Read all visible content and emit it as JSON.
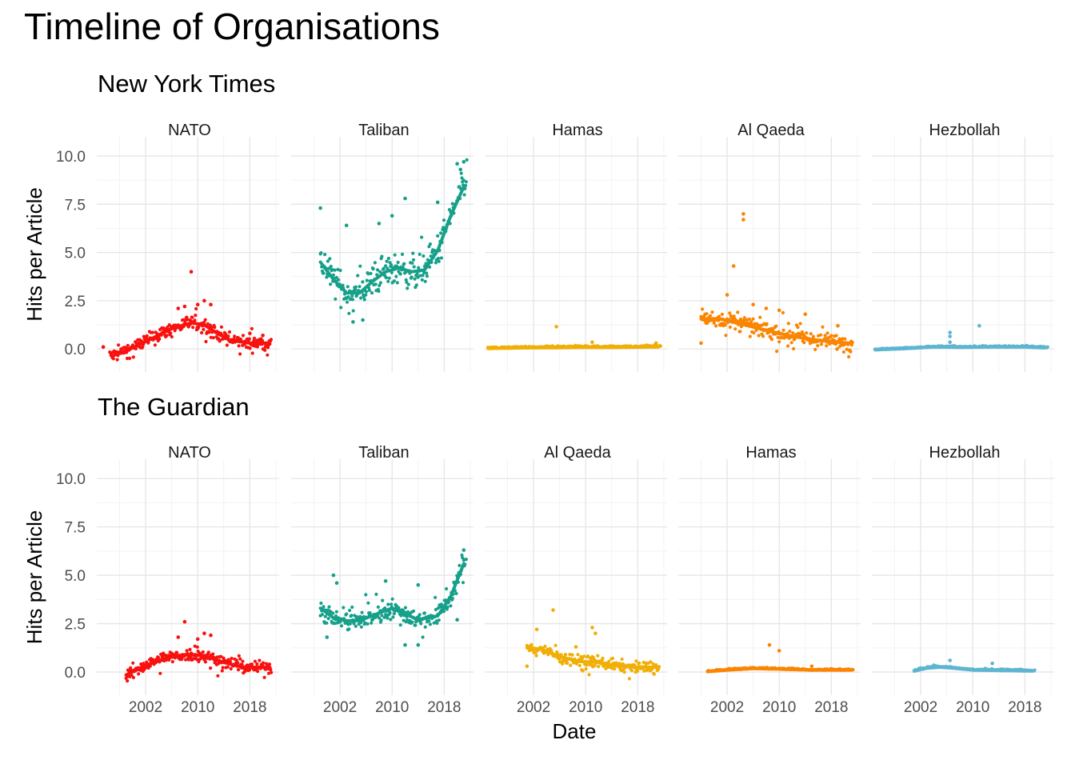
{
  "figure": {
    "title": "Timeline of Organisations",
    "xlabel": "Date",
    "ylabel": "Hits per Article"
  },
  "chart_data": [
    {
      "type": "scatter",
      "title": "New York Times",
      "xlabel": "",
      "ylabel": "Hits per Article",
      "x_ticks": [
        "2002",
        "2010",
        "2018"
      ],
      "y_ticks": [
        "0.0",
        "2.5",
        "5.0",
        "7.5",
        "10.0"
      ],
      "ylim": [
        -0.7,
        10.5
      ],
      "xlim": [
        1994.5,
        2022.5
      ],
      "grid": true,
      "facets": [
        {
          "label": "NATO",
          "color": "#F8110E",
          "trend": [
            [
              1997,
              -0.35
            ],
            [
              2000,
              0.05
            ],
            [
              2003,
              0.55
            ],
            [
              2006,
              1.05
            ],
            [
              2009,
              1.35
            ],
            [
              2011,
              1.25
            ],
            [
              2013,
              0.8
            ],
            [
              2015,
              0.45
            ],
            [
              2018,
              0.3
            ],
            [
              2021,
              0.3
            ]
          ],
          "outliers": [
            [
              1995.5,
              0.1
            ],
            [
              2009,
              4.0
            ],
            [
              2011,
              2.5
            ],
            [
              2012,
              2.3
            ],
            [
              2010,
              2.3
            ],
            [
              2007,
              2.1
            ],
            [
              2008,
              2.2
            ],
            [
              2018,
              0.8
            ],
            [
              2020,
              0.7
            ]
          ],
          "spread": 0.45,
          "start": 1996.5,
          "end": 2021.3,
          "density": 3.5
        },
        {
          "label": "Taliban",
          "color": "#16A08A",
          "trend": [
            [
              1999,
              4.5
            ],
            [
              2001,
              3.6
            ],
            [
              2003,
              2.9
            ],
            [
              2005,
              2.9
            ],
            [
              2007,
              3.5
            ],
            [
              2009,
              4.0
            ],
            [
              2011,
              4.2
            ],
            [
              2013,
              4.0
            ],
            [
              2015,
              4.1
            ],
            [
              2017,
              5.1
            ],
            [
              2019,
              6.9
            ],
            [
              2021,
              8.4
            ]
          ],
          "outliers": [
            [
              1999,
              7.3
            ],
            [
              2003,
              6.4
            ],
            [
              2012,
              7.8
            ],
            [
              2008,
              6.5
            ],
            [
              2010,
              6.9
            ],
            [
              2017,
              7.6
            ],
            [
              2020,
              9.6
            ],
            [
              2021,
              9.7
            ],
            [
              2020.5,
              9.3
            ],
            [
              2004,
              1.4
            ],
            [
              2005.5,
              1.5
            ]
          ],
          "spread": 1.0,
          "start": 1999,
          "end": 2021.5,
          "density": 3.5
        },
        {
          "label": "Hamas",
          "color": "#F1AF05",
          "trend": [
            [
              1995,
              0.02
            ],
            [
              2000,
              0.05
            ],
            [
              2005,
              0.06
            ],
            [
              2010,
              0.08
            ],
            [
              2015,
              0.08
            ],
            [
              2021,
              0.1
            ]
          ],
          "outliers": [
            [
              2005.5,
              1.15
            ],
            [
              2011,
              0.35
            ],
            [
              2020.8,
              0.3
            ]
          ],
          "spread": 0.08,
          "start": 1995,
          "end": 2021.5,
          "density": 4
        },
        {
          "label": "Al Qaeda",
          "color": "#FB8401",
          "trend": [
            [
              1998,
              1.55
            ],
            [
              2001,
              1.55
            ],
            [
              2004,
              1.3
            ],
            [
              2007,
              1.05
            ],
            [
              2010,
              0.8
            ],
            [
              2013,
              0.6
            ],
            [
              2016,
              0.45
            ],
            [
              2019,
              0.35
            ],
            [
              2021,
              0.3
            ]
          ],
          "outliers": [
            [
              1998,
              0.3
            ],
            [
              2003,
              4.3
            ],
            [
              2004.5,
              7.0
            ],
            [
              2004.5,
              6.7
            ],
            [
              2002,
              2.8
            ],
            [
              2006,
              2.3
            ],
            [
              2008,
              2.1
            ],
            [
              2010,
              2.0
            ],
            [
              2014,
              1.8
            ],
            [
              2019,
              1.2
            ]
          ],
          "spread": 0.5,
          "start": 1998,
          "end": 2021.3,
          "density": 3.5
        },
        {
          "label": "Hezbollah",
          "color": "#5DB5D1",
          "trend": [
            [
              1995,
              -0.05
            ],
            [
              2000,
              0.02
            ],
            [
              2004,
              0.1
            ],
            [
              2008,
              0.08
            ],
            [
              2013,
              0.1
            ],
            [
              2018,
              0.1
            ],
            [
              2021,
              0.05
            ]
          ],
          "outliers": [
            [
              2006.5,
              0.85
            ],
            [
              2006.5,
              0.65
            ],
            [
              2011,
              1.2
            ],
            [
              2006.5,
              0.35
            ]
          ],
          "spread": 0.06,
          "start": 1995,
          "end": 2021.5,
          "density": 4
        }
      ]
    },
    {
      "type": "scatter",
      "title": "The Guardian",
      "xlabel": "Date",
      "ylabel": "Hits per Article",
      "x_ticks": [
        "2002",
        "2010",
        "2018"
      ],
      "y_ticks": [
        "0.0",
        "2.5",
        "5.0",
        "7.5",
        "10.0"
      ],
      "ylim": [
        -0.7,
        10.5
      ],
      "xlim": [
        1994.5,
        2022.5
      ],
      "grid": true,
      "facets": [
        {
          "label": "NATO",
          "color": "#F8110E",
          "trend": [
            [
              1999,
              -0.15
            ],
            [
              2002,
              0.35
            ],
            [
              2005,
              0.7
            ],
            [
              2008,
              0.9
            ],
            [
              2011,
              0.85
            ],
            [
              2014,
              0.5
            ],
            [
              2017,
              0.25
            ],
            [
              2021,
              0.25
            ]
          ],
          "outliers": [
            [
              2008,
              2.6
            ],
            [
              2011,
              2.0
            ],
            [
              2012,
              1.9
            ],
            [
              2010,
              1.7
            ],
            [
              2007,
              1.8
            ],
            [
              2021,
              0.4
            ]
          ],
          "spread": 0.4,
          "start": 1999,
          "end": 2021.3,
          "density": 3.5
        },
        {
          "label": "Taliban",
          "color": "#16A08A",
          "trend": [
            [
              1999,
              3.3
            ],
            [
              2001,
              2.8
            ],
            [
              2003,
              2.65
            ],
            [
              2005,
              2.65
            ],
            [
              2008,
              3.05
            ],
            [
              2010,
              3.3
            ],
            [
              2012,
              3.0
            ],
            [
              2014,
              2.7
            ],
            [
              2017,
              2.9
            ],
            [
              2019,
              3.9
            ],
            [
              2021,
              5.6
            ]
          ],
          "outliers": [
            [
              2001,
              5.0
            ],
            [
              2001.5,
              4.6
            ],
            [
              2009,
              4.7
            ],
            [
              2014,
              4.5
            ],
            [
              2020,
              2.7
            ],
            [
              2021,
              6.3
            ],
            [
              2000,
              1.8
            ],
            [
              2012,
              1.4
            ],
            [
              2014,
              1.4
            ]
          ],
          "spread": 0.6,
          "start": 1999,
          "end": 2021.4,
          "density": 3.5
        },
        {
          "label": "Al Qaeda",
          "color": "#F1AF05",
          "trend": [
            [
              2001,
              1.25
            ],
            [
              2003,
              1.2
            ],
            [
              2006,
              0.8
            ],
            [
              2009,
              0.55
            ],
            [
              2012,
              0.5
            ],
            [
              2015,
              0.3
            ],
            [
              2018,
              0.25
            ],
            [
              2021,
              0.25
            ]
          ],
          "outliers": [
            [
              2005,
              3.2
            ],
            [
              2002.5,
              2.2
            ],
            [
              2011,
              2.3
            ],
            [
              2011.5,
              2.0
            ],
            [
              2001,
              0.3
            ],
            [
              2008.5,
              1.3
            ],
            [
              2021,
              0.1
            ]
          ],
          "spread": 0.35,
          "start": 2001,
          "end": 2021.3,
          "density": 3.5
        },
        {
          "label": "Hamas",
          "color": "#FB8401",
          "trend": [
            [
              1999,
              0.02
            ],
            [
              2002,
              0.1
            ],
            [
              2006,
              0.18
            ],
            [
              2010,
              0.15
            ],
            [
              2015,
              0.1
            ],
            [
              2021,
              0.1
            ]
          ],
          "outliers": [
            [
              2008.5,
              1.4
            ],
            [
              2010,
              1.1
            ],
            [
              2015,
              0.3
            ]
          ],
          "spread": 0.06,
          "start": 1999,
          "end": 2021.4,
          "density": 4
        },
        {
          "label": "Hezbollah",
          "color": "#5DB5D1",
          "trend": [
            [
              2001,
              0.05
            ],
            [
              2003,
              0.2
            ],
            [
              2005,
              0.25
            ],
            [
              2007,
              0.2
            ],
            [
              2010,
              0.1
            ],
            [
              2014,
              0.08
            ],
            [
              2019,
              0.05
            ]
          ],
          "outliers": [
            [
              2006.5,
              0.6
            ],
            [
              2013,
              0.45
            ],
            [
              2004,
              0.35
            ]
          ],
          "spread": 0.07,
          "start": 2001,
          "end": 2019.5,
          "density": 4
        }
      ]
    }
  ]
}
